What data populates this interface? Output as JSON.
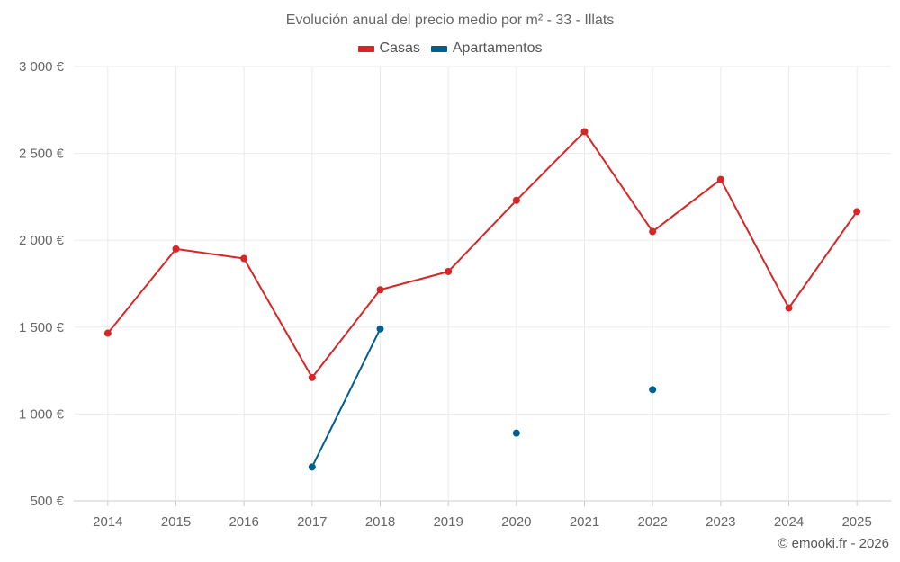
{
  "chart_data": {
    "type": "line",
    "title": "Evolución anual del precio medio por m² - 33 - Illats",
    "categories": [
      "2014",
      "2015",
      "2016",
      "2017",
      "2018",
      "2019",
      "2020",
      "2021",
      "2022",
      "2023",
      "2024",
      "2025"
    ],
    "series": [
      {
        "name": "Casas",
        "color": "#d62728",
        "values": [
          1465,
          1950,
          1895,
          1210,
          1715,
          1820,
          2230,
          2625,
          2050,
          2350,
          1610,
          2165
        ]
      },
      {
        "name": "Apartamentos",
        "color": "#005f91",
        "values": [
          null,
          null,
          null,
          695,
          1490,
          null,
          890,
          null,
          1140,
          null,
          null,
          null
        ]
      }
    ],
    "ylim": [
      500,
      3000
    ],
    "yticks": [
      500,
      1000,
      1500,
      2000,
      2500,
      3000
    ],
    "ytick_labels": [
      "500 €",
      "1 000 €",
      "1 500 €",
      "2 000 €",
      "2 500 €",
      "3 000 €"
    ],
    "xlabel": "",
    "ylabel": "",
    "grid": true,
    "legend_position": "top-center"
  },
  "credit": "© emooki.fr - 2026"
}
